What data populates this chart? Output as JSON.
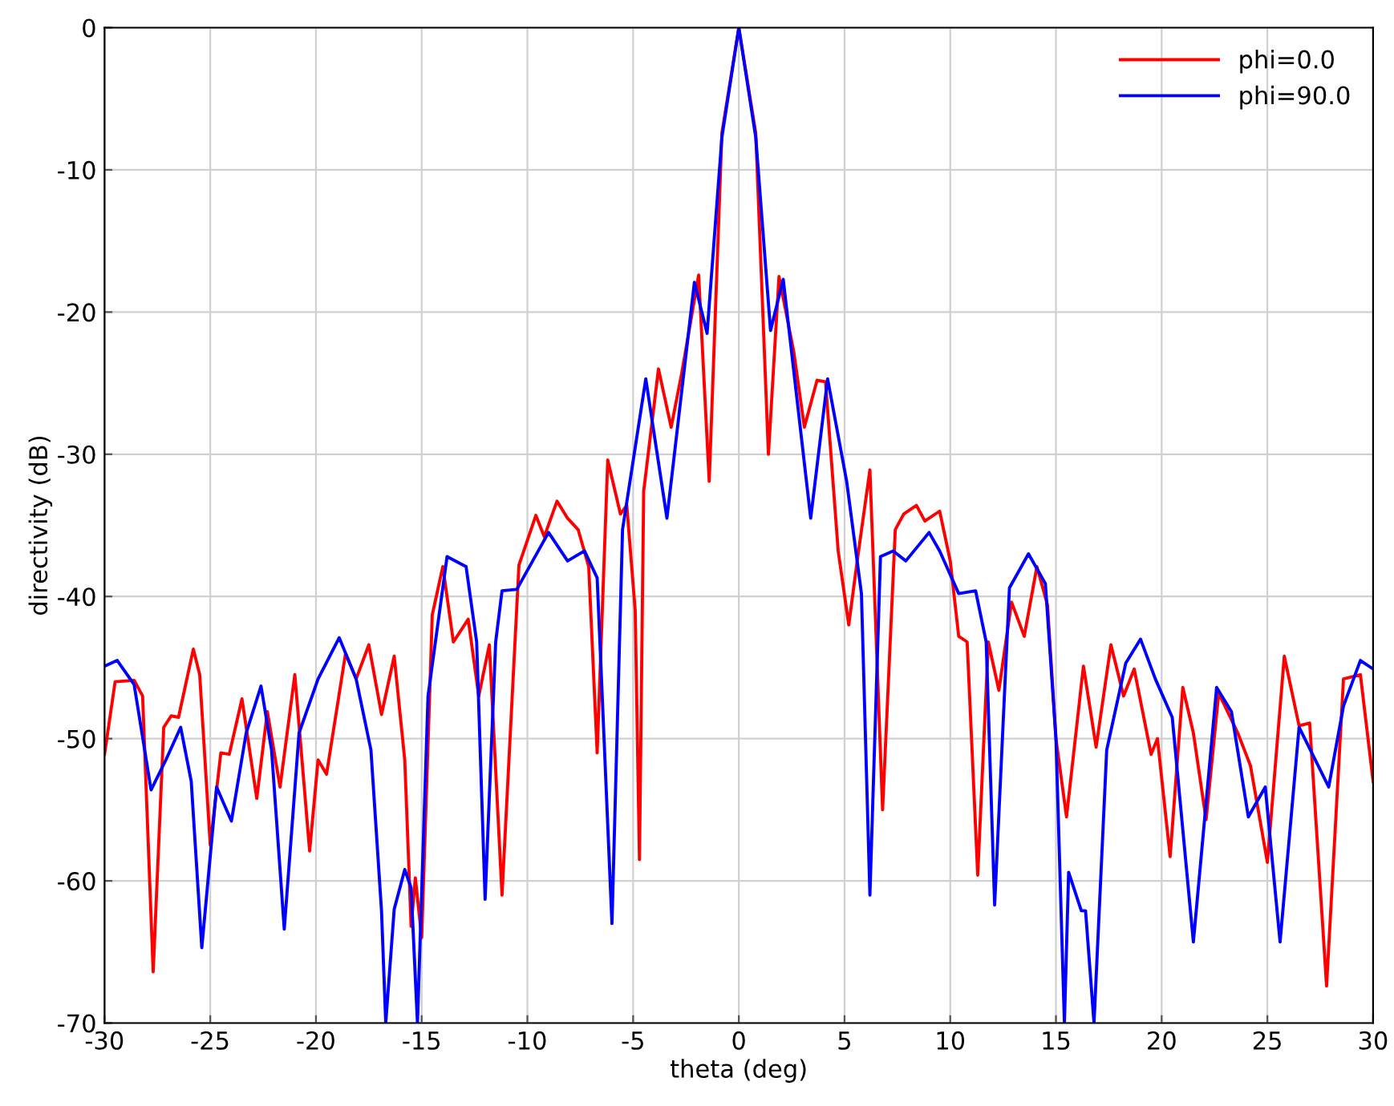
{
  "chart_data": {
    "type": "line",
    "xlabel": "theta (deg)",
    "ylabel": "directivity (dB)",
    "xlim": [
      -30,
      30
    ],
    "ylim": [
      -70,
      0
    ],
    "xticks": [
      -30,
      -25,
      -20,
      -15,
      -10,
      -5,
      0,
      5,
      10,
      15,
      20,
      25,
      30
    ],
    "yticks": [
      -70,
      -60,
      -50,
      -40,
      -30,
      -20,
      -10,
      0
    ],
    "grid": true,
    "legend": "top right",
    "line_style": "solid",
    "marker": "none",
    "series": [
      {
        "name": "phi=0.0",
        "color": "#ff0000",
        "x": [
          -30,
          -29.5,
          -28.6,
          -28.2,
          -27.7,
          -27.2,
          -26.85,
          -26.5,
          -25.8,
          -25.5,
          -25,
          -24.5,
          -24.1,
          -23.5,
          -22.8,
          -22.3,
          -21.7,
          -21,
          -20.3,
          -19.9,
          -19.5,
          -18.6,
          -18.1,
          -17.5,
          -16.9,
          -16.3,
          -15.8,
          -15.5,
          -15.3,
          -15,
          -14.5,
          -14,
          -13.5,
          -12.8,
          -12.3,
          -11.8,
          -11.2,
          -10.4,
          -9.6,
          -9.2,
          -8.6,
          -8.1,
          -7.6,
          -7.1,
          -6.7,
          -6.2,
          -5.6,
          -5.3,
          -4.9,
          -4.7,
          -4.5,
          -3.8,
          -3.2,
          -2.7,
          -1.9,
          -1.4,
          -0.8,
          0,
          0.8,
          1.4,
          1.9,
          2.6,
          3.1,
          3.7,
          4.1,
          4.7,
          5.2,
          5.6,
          6.2,
          6.8,
          7.4,
          7.8,
          8.4,
          8.8,
          9.5,
          10,
          10.4,
          10.8,
          11.3,
          11.8,
          12.3,
          12.9,
          13.5,
          14.1,
          14.6,
          15,
          15.5,
          16.3,
          16.9,
          17.6,
          18.2,
          18.7,
          19.5,
          19.8,
          20.4,
          21,
          21.5,
          22.1,
          22.7,
          23.6,
          24.2,
          25,
          25.8,
          26.5,
          27,
          27.8,
          28.6,
          29.4,
          30
        ],
        "values": [
          -51.1,
          -46,
          -45.9,
          -47,
          -66.4,
          -49.2,
          -48.4,
          -48.5,
          -43.7,
          -45.5,
          -57.5,
          -51,
          -51.1,
          -47.2,
          -54.2,
          -48.1,
          -53.4,
          -45.5,
          -57.9,
          -51.5,
          -52.5,
          -44,
          -45.8,
          -43.4,
          -48.3,
          -44.2,
          -51.5,
          -63.2,
          -59.8,
          -64,
          -41.3,
          -37.9,
          -43.2,
          -41.6,
          -47,
          -43.4,
          -61,
          -37.8,
          -34.3,
          -35.8,
          -33.3,
          -34.5,
          -35.3,
          -37.9,
          -51,
          -30.4,
          -34.2,
          -33.6,
          -41,
          -58.5,
          -32.6,
          -24,
          -28.1,
          -24.3,
          -17.4,
          -31.9,
          -7.4,
          0,
          -7.4,
          -30,
          -17.5,
          -22.8,
          -28.1,
          -24.8,
          -24.9,
          -36.8,
          -42,
          -37.5,
          -31.1,
          -55,
          -35.3,
          -34.2,
          -33.6,
          -34.7,
          -34,
          -37.5,
          -42.8,
          -43.2,
          -59.6,
          -43.2,
          -46.6,
          -40.4,
          -42.8,
          -37.9,
          -40.6,
          -50,
          -55.5,
          -44.9,
          -50.6,
          -43.4,
          -47,
          -45.1,
          -51.1,
          -50,
          -58.3,
          -46.4,
          -49.6,
          -55.7,
          -46.8,
          -49.6,
          -51.9,
          -58.7,
          -44.2,
          -49.1,
          -48.9,
          -67.4,
          -45.8,
          -45.5,
          -53
        ]
      },
      {
        "name": "phi=90.0",
        "color": "#0000ff",
        "x": [
          -30,
          -29.4,
          -28.6,
          -27.8,
          -27.1,
          -26.4,
          -25.9,
          -25.4,
          -24.7,
          -24,
          -23.3,
          -22.6,
          -22.1,
          -21.5,
          -20.8,
          -19.9,
          -18.9,
          -18.1,
          -17.4,
          -16.9,
          -16.7,
          -16.3,
          -15.8,
          -15.5,
          -15.2,
          -14.7,
          -13.8,
          -12.9,
          -12.4,
          -12,
          -11.5,
          -11.2,
          -10.5,
          -9,
          -8.1,
          -7.3,
          -6.7,
          -6,
          -5.5,
          -4.4,
          -3.4,
          -2.1,
          -1.5,
          -0.8,
          0,
          0.8,
          1.5,
          2.1,
          3.4,
          4.2,
          5.1,
          5.8,
          6.2,
          6.7,
          7.3,
          7.9,
          9,
          9.5,
          10.4,
          11.2,
          11.7,
          12.1,
          12.8,
          13.7,
          14.5,
          15,
          15.4,
          15.6,
          16.2,
          16.4,
          16.8,
          17.4,
          18.3,
          19,
          19.7,
          20.5,
          21.5,
          22.6,
          23.3,
          24.1,
          24.9,
          25.6,
          26.5,
          27.9,
          28.6,
          29.4,
          30
        ],
        "values": [
          -44.9,
          -44.5,
          -46.2,
          -53.6,
          -51.5,
          -49.2,
          -53,
          -64.7,
          -53.4,
          -55.8,
          -49.6,
          -46.3,
          -50.8,
          -63.4,
          -49.6,
          -45.8,
          -42.9,
          -45.8,
          -50.8,
          -62.1,
          -70,
          -62,
          -59.2,
          -60.5,
          -70,
          -47,
          -37.2,
          -37.9,
          -43.2,
          -61.3,
          -43.2,
          -39.6,
          -39.5,
          -35.5,
          -37.5,
          -36.8,
          -38.7,
          -63,
          -35.3,
          -24.7,
          -34.5,
          -17.9,
          -21.5,
          -7.7,
          0,
          -7.7,
          -21.3,
          -17.7,
          -34.5,
          -24.7,
          -31.9,
          -39.8,
          -61,
          -37.2,
          -36.8,
          -37.5,
          -35.5,
          -36.8,
          -39.8,
          -39.6,
          -43.2,
          -61.7,
          -39.4,
          -37,
          -39.1,
          -50,
          -70,
          -59.4,
          -62.1,
          -62.1,
          -70,
          -50.8,
          -44.7,
          -43,
          -45.8,
          -48.5,
          -64.3,
          -46.4,
          -48.1,
          -55.5,
          -53.4,
          -64.3,
          -49.2,
          -53.4,
          -47.7,
          -44.5,
          -45.1
        ]
      }
    ]
  }
}
